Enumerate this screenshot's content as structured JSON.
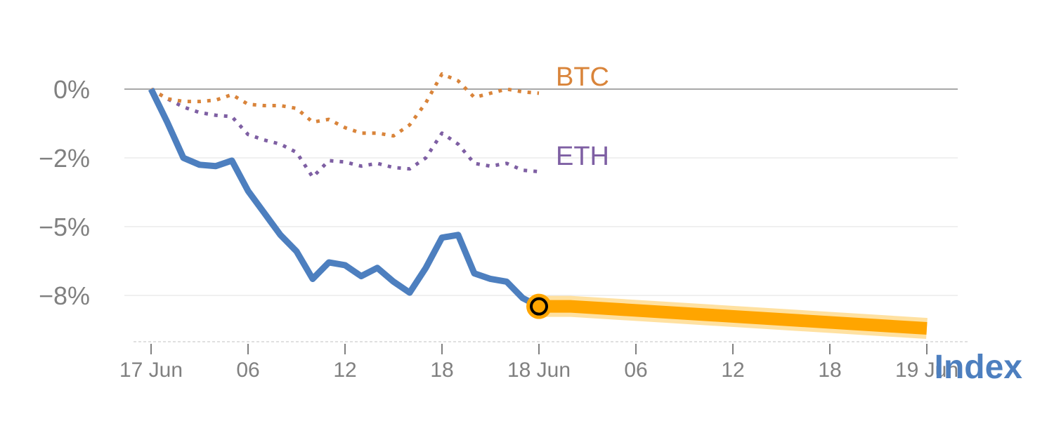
{
  "chart_data": {
    "type": "line",
    "xlabel": "Index",
    "x_tick_labels": [
      "17 Jun",
      "06",
      "12",
      "18",
      "18 Jun",
      "06",
      "12",
      "18",
      "19 Jun"
    ],
    "y_tick_labels": [
      "0%",
      "−2%",
      "−5%",
      "−8%"
    ],
    "y_tick_values": [
      0,
      -2.5,
      -5,
      -7.5
    ],
    "colors": {
      "index": "#4d7fbf",
      "btc": "#d9843a",
      "eth": "#7e5fa3",
      "forecast": "#ffa500"
    },
    "series": [
      {
        "name": "Index",
        "style": "solid",
        "hours": [
          0,
          1,
          2,
          3,
          4,
          5,
          6,
          7,
          8,
          9,
          10,
          11,
          12,
          13,
          14,
          15,
          16,
          17,
          18,
          19,
          20,
          21,
          22,
          23,
          24
        ],
        "values": [
          0,
          -1.2,
          -2.5,
          -2.75,
          -2.8,
          -2.6,
          -3.7,
          -4.5,
          -5.3,
          -5.9,
          -6.9,
          -6.3,
          -6.4,
          -6.8,
          -6.5,
          -7.0,
          -7.4,
          -6.5,
          -5.4,
          -5.3,
          -6.7,
          -6.9,
          -7.0,
          -7.6,
          -7.9
        ]
      },
      {
        "name": "BTC",
        "style": "dotted",
        "hours": [
          0,
          1,
          2,
          3,
          4,
          5,
          6,
          7,
          8,
          9,
          10,
          11,
          12,
          13,
          14,
          15,
          16,
          17,
          18,
          19,
          20,
          21,
          22,
          23,
          24
        ],
        "values": [
          0,
          -0.35,
          -0.45,
          -0.45,
          -0.4,
          -0.2,
          -0.55,
          -0.6,
          -0.6,
          -0.7,
          -1.2,
          -1.1,
          -1.4,
          -1.6,
          -1.6,
          -1.7,
          -1.3,
          -0.5,
          0.55,
          0.3,
          -0.3,
          -0.15,
          0.0,
          -0.1,
          -0.15
        ]
      },
      {
        "name": "ETH",
        "style": "dotted",
        "hours": [
          0,
          1,
          2,
          3,
          4,
          5,
          6,
          7,
          8,
          9,
          10,
          11,
          12,
          13,
          14,
          15,
          16,
          17,
          18,
          19,
          20,
          21,
          22,
          23,
          24
        ],
        "values": [
          0,
          -0.35,
          -0.65,
          -0.85,
          -0.95,
          -1.0,
          -1.65,
          -1.85,
          -2.0,
          -2.3,
          -3.2,
          -2.6,
          -2.65,
          -2.8,
          -2.7,
          -2.85,
          -2.9,
          -2.5,
          -1.6,
          -2.0,
          -2.7,
          -2.8,
          -2.7,
          -2.95,
          -3.0
        ]
      },
      {
        "name": "forecast",
        "style": "thick",
        "hours": [
          24,
          26,
          48
        ],
        "values": [
          -7.9,
          -7.9,
          -8.7
        ]
      }
    ],
    "marker": {
      "hour": 24,
      "value": -7.9
    },
    "grid": true,
    "zero_line": true
  }
}
